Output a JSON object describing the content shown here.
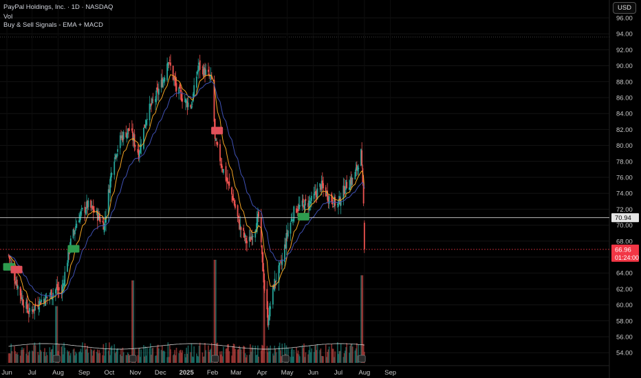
{
  "header": {
    "symbol_line": "PayPal Holdings, Inc. · 1D · NASDAQ",
    "vol_label": "Vol",
    "indicator_label": "Buy & Sell Signals - EMA + MACD"
  },
  "currency_button": "USD",
  "colors": {
    "bull": "#26a69a",
    "bear": "#ef5350",
    "ema_fast": "#f5a623",
    "ema_slow": "#3f51b5",
    "buy_tag": "#2e9b4f",
    "sell_tag": "#e0505a",
    "price_tag": "#f23645"
  },
  "chart_data": {
    "type": "candlestick",
    "y_ticks": [
      "96.00",
      "94.00",
      "92.00",
      "90.00",
      "88.00",
      "86.00",
      "84.00",
      "82.00",
      "80.00",
      "78.00",
      "76.00",
      "74.00",
      "72.00",
      "70.00",
      "68.00",
      "66.00",
      "64.00",
      "62.00",
      "60.00",
      "58.00",
      "56.00",
      "54.00"
    ],
    "ylim": [
      52.8,
      96.8
    ],
    "x_labels": [
      "Jun",
      "Jul",
      "Aug",
      "Sep",
      "Oct",
      "Nov",
      "Dec",
      "2025",
      "Feb",
      "Mar",
      "Apr",
      "May",
      "Jun",
      "Jul",
      "Aug",
      "Sep"
    ],
    "reference_line": {
      "value": 70.94,
      "label": "70.94"
    },
    "last_price": {
      "value": 66.96,
      "label": "66.96",
      "countdown": "01:24:00"
    },
    "close_path": [
      [
        "2024-06-01",
        67.0
      ],
      [
        "2024-06-10",
        63.5
      ],
      [
        "2024-06-20",
        60.5
      ],
      [
        "2024-06-28",
        59.0
      ],
      [
        "2024-07-10",
        60.5
      ],
      [
        "2024-07-20",
        61.0
      ],
      [
        "2024-07-30",
        62.0
      ],
      [
        "2024-08-05",
        61.5
      ],
      [
        "2024-08-15",
        67.5
      ],
      [
        "2024-08-25",
        71.0
      ],
      [
        "2024-09-05",
        72.5
      ],
      [
        "2024-09-15",
        71.5
      ],
      [
        "2024-09-25",
        70.0
      ],
      [
        "2024-10-05",
        78.0
      ],
      [
        "2024-10-15",
        81.0
      ],
      [
        "2024-10-25",
        82.0
      ],
      [
        "2024-11-05",
        79.0
      ],
      [
        "2024-11-15",
        84.0
      ],
      [
        "2024-11-25",
        86.0
      ],
      [
        "2024-12-05",
        88.5
      ],
      [
        "2024-12-10",
        91.0
      ],
      [
        "2024-12-20",
        87.0
      ],
      [
        "2024-12-31",
        85.5
      ],
      [
        "2025-01-07",
        85.0
      ],
      [
        "2025-01-15",
        90.0
      ],
      [
        "2025-01-25",
        89.0
      ],
      [
        "2025-02-01",
        88.0
      ],
      [
        "2025-02-04",
        80.5
      ],
      [
        "2025-02-15",
        76.5
      ],
      [
        "2025-02-25",
        73.5
      ],
      [
        "2025-03-05",
        70.0
      ],
      [
        "2025-03-15",
        67.5
      ],
      [
        "2025-03-28",
        71.0
      ],
      [
        "2025-04-04",
        62.0
      ],
      [
        "2025-04-08",
        58.0
      ],
      [
        "2025-04-15",
        62.5
      ],
      [
        "2025-04-25",
        65.5
      ],
      [
        "2025-05-01",
        69.0
      ],
      [
        "2025-05-10",
        72.0
      ],
      [
        "2025-05-20",
        72.5
      ],
      [
        "2025-05-30",
        73.0
      ],
      [
        "2025-06-10",
        75.0
      ],
      [
        "2025-06-20",
        73.5
      ],
      [
        "2025-06-30",
        72.5
      ],
      [
        "2025-07-10",
        75.0
      ],
      [
        "2025-07-20",
        76.0
      ],
      [
        "2025-07-28",
        79.0
      ],
      [
        "2025-07-31",
        72.5
      ],
      [
        "2025-08-01",
        66.96
      ]
    ],
    "signals": [
      {
        "type": "buy",
        "date": "2024-06-02"
      },
      {
        "type": "sell",
        "date": "2024-06-12"
      },
      {
        "type": "buy",
        "date": "2024-08-18"
      },
      {
        "type": "sell",
        "date": "2025-02-06"
      },
      {
        "type": "buy",
        "date": "2025-05-20"
      }
    ],
    "earnings_markers": [
      "2024-07-30",
      "2024-10-29",
      "2025-02-04",
      "2025-04-29",
      "2025-07-29"
    ],
    "volume_spikes": [
      {
        "date": "2024-07-30",
        "rel": 0.55
      },
      {
        "date": "2024-10-29",
        "rel": 0.8
      },
      {
        "date": "2025-02-04",
        "rel": 1.0
      },
      {
        "date": "2025-04-04",
        "rel": 0.75
      },
      {
        "date": "2025-07-29",
        "rel": 0.85
      }
    ]
  }
}
